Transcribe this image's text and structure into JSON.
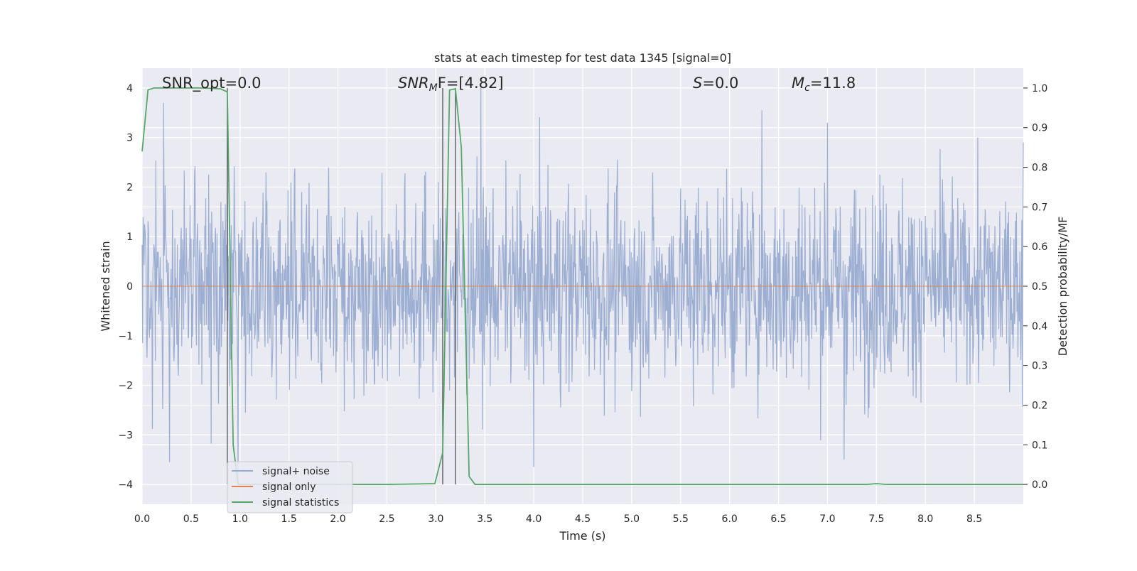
{
  "chart_data": {
    "type": "line",
    "title": "stats at each timestep for test data 1345 [signal=0]",
    "xlabel": "Time (s)",
    "ylabel_left": "Whitened strain",
    "ylabel_right": "Detection probability/MF",
    "xlim": [
      0.0,
      9.0
    ],
    "ylim_left": [
      -4.4,
      4.4
    ],
    "ylim_right": [
      -0.05,
      1.05
    ],
    "x_ticks": [
      "0.0",
      "0.5",
      "1.0",
      "1.5",
      "2.0",
      "2.5",
      "3.0",
      "3.5",
      "4.0",
      "4.5",
      "5.0",
      "5.5",
      "6.0",
      "6.5",
      "7.0",
      "7.5",
      "8.0",
      "8.5"
    ],
    "y_left_ticks": [
      "4",
      "3",
      "2",
      "1",
      "0",
      "−1",
      "−2",
      "−3",
      "−4"
    ],
    "y_right_ticks": [
      "1.0",
      "0.9",
      "0.8",
      "0.7",
      "0.6",
      "0.5",
      "0.4",
      "0.3",
      "0.2",
      "0.1",
      "0.0"
    ],
    "grid": true,
    "legend_position": "lower-left",
    "annotations": {
      "snr_opt": "SNR_opt=0.0",
      "snr_mf_base": "SNR",
      "snr_mf_sub": "M",
      "snr_mf_rest": "F=[4.82]",
      "s_label": "S",
      "s_rest": "=0.0",
      "mc_base": "M",
      "mc_sub": "c",
      "mc_rest": "=11.8"
    },
    "vertical_markers_x": [
      0.87,
      3.07,
      3.2
    ],
    "series": [
      {
        "name": "signal+ noise",
        "color": "#98abd0",
        "description_range": [
          -3.6,
          4.0
        ],
        "noise_sigma": 1.0,
        "peaks": [
          [
            0.22,
            3.7
          ],
          [
            0.87,
            3.8
          ],
          [
            3.46,
            4.0
          ],
          [
            6.33,
            3.55
          ],
          [
            7.0,
            3.3
          ],
          [
            9.0,
            2.9
          ]
        ],
        "troughs": [
          [
            0.28,
            -3.55
          ],
          [
            0.98,
            -4.0
          ],
          [
            4.0,
            -3.65
          ],
          [
            7.17,
            -3.5
          ]
        ]
      },
      {
        "name": "signal only",
        "color": "#dd8452",
        "x": [
          0.0,
          9.0
        ],
        "y": [
          0.0,
          0.0
        ]
      },
      {
        "name": "signal statistics",
        "color": "#55a868",
        "axis": "right",
        "x": [
          0.0,
          0.06,
          0.12,
          0.2,
          0.4,
          0.6,
          0.8,
          0.87,
          0.93,
          0.98,
          1.0,
          1.5,
          2.0,
          2.5,
          2.99,
          3.07,
          3.14,
          3.2,
          3.26,
          3.34,
          3.4,
          3.6,
          4.0,
          5.0,
          6.0,
          7.0,
          7.4,
          7.5,
          7.6,
          8.0,
          9.0
        ],
        "y": [
          0.84,
          0.995,
          1.0,
          1.0,
          1.0,
          1.0,
          0.998,
          0.99,
          0.1,
          0.0,
          0.0,
          0.0,
          0.0,
          0.0,
          0.002,
          0.08,
          0.995,
          0.998,
          0.85,
          0.02,
          0.0,
          0.0,
          0.0,
          0.0,
          0.0,
          0.0,
          0.0,
          0.002,
          0.0,
          0.0,
          0.0
        ]
      }
    ]
  }
}
